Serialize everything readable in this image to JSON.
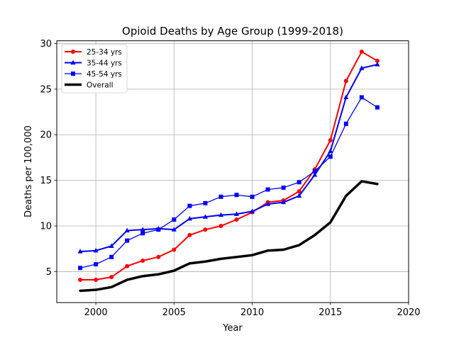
{
  "chart_data": {
    "type": "line",
    "title": "Opioid Deaths by Age Group (1999-2018)",
    "xlabel": "Year",
    "ylabel": "Deaths per 100,000",
    "xlim": [
      1997.5,
      2020
    ],
    "ylim": [
      1.6,
      30.3
    ],
    "xticks": [
      2000,
      2005,
      2010,
      2015,
      2020
    ],
    "yticks": [
      5,
      10,
      15,
      20,
      25,
      30
    ],
    "grid": true,
    "legend_position": "top-left",
    "x": [
      1999,
      2000,
      2001,
      2002,
      2003,
      2004,
      2005,
      2006,
      2007,
      2008,
      2009,
      2010,
      2011,
      2012,
      2013,
      2014,
      2015,
      2016,
      2017,
      2018
    ],
    "series": [
      {
        "name": "25-34 yrs",
        "color": "#ff0000",
        "marker": "circle",
        "line_width": 2,
        "values": [
          4.1,
          4.1,
          4.4,
          5.6,
          6.2,
          6.6,
          7.4,
          9.0,
          9.6,
          10.0,
          10.7,
          11.5,
          12.6,
          12.8,
          13.8,
          16.2,
          19.4,
          25.9,
          29.1,
          28.1
        ]
      },
      {
        "name": "35-44 yrs",
        "color": "#0000ff",
        "marker": "triangle",
        "line_width": 2,
        "values": [
          7.2,
          7.3,
          7.8,
          9.5,
          9.6,
          9.7,
          9.6,
          10.8,
          11.0,
          11.2,
          11.3,
          11.6,
          12.4,
          12.6,
          13.3,
          15.6,
          18.2,
          24.1,
          27.3,
          27.7
        ]
      },
      {
        "name": "45-54 yrs",
        "color": "#0000ff",
        "marker": "square",
        "line_width": 1.3,
        "values": [
          5.4,
          5.8,
          6.6,
          8.4,
          9.2,
          9.6,
          10.7,
          12.2,
          12.5,
          13.2,
          13.4,
          13.2,
          14.0,
          14.2,
          14.8,
          16.0,
          17.6,
          21.2,
          24.1,
          23.0
        ]
      },
      {
        "name": "Overall",
        "color": "#000000",
        "marker": "none",
        "line_width": 3.5,
        "values": [
          2.9,
          3.0,
          3.3,
          4.1,
          4.5,
          4.7,
          5.1,
          5.9,
          6.1,
          6.4,
          6.6,
          6.8,
          7.3,
          7.4,
          7.9,
          9.0,
          10.4,
          13.3,
          14.9,
          14.6
        ]
      }
    ]
  }
}
